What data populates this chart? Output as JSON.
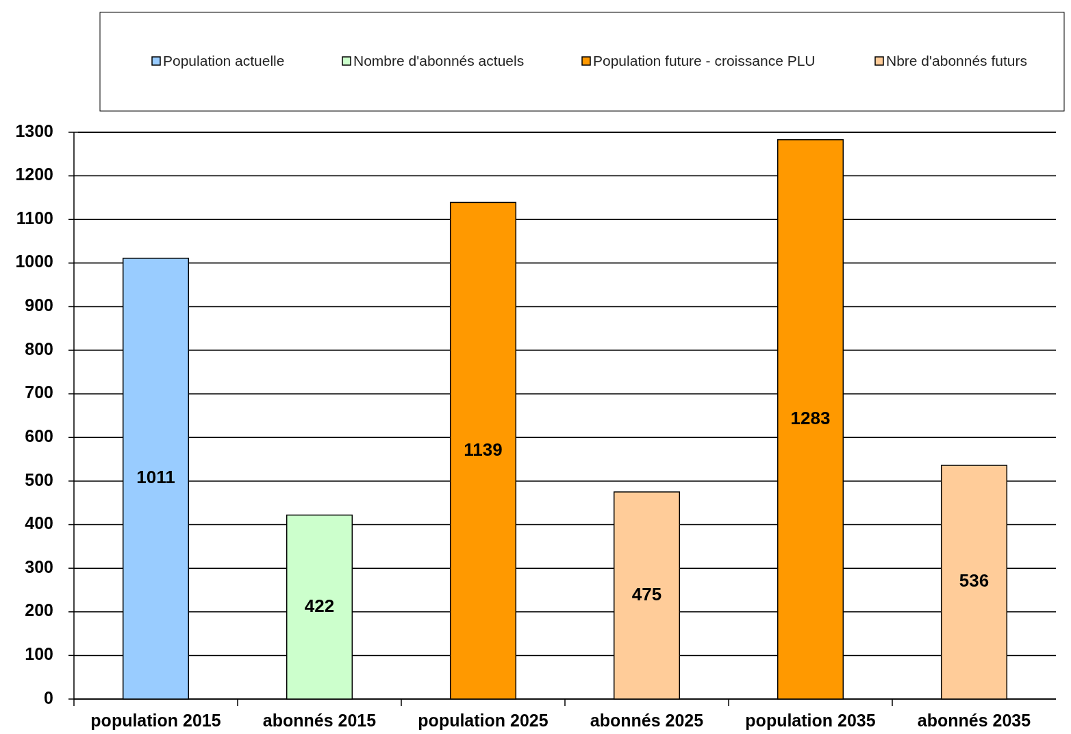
{
  "chart_data": {
    "type": "bar",
    "categories": [
      "population 2015",
      "abonnés 2015",
      "population 2025",
      "abonnés 2025",
      "population 2035",
      "abonnés 2035"
    ],
    "series": [
      {
        "name": "Population actuelle",
        "color": "#99ccff",
        "values": [
          1011,
          null,
          null,
          null,
          null,
          null
        ]
      },
      {
        "name": "Nombre d'abonnés actuels",
        "color": "#ccffcc",
        "values": [
          null,
          422,
          null,
          null,
          null,
          null
        ]
      },
      {
        "name": "Population future - croissance PLU",
        "color": "#ff9900",
        "values": [
          null,
          null,
          1139,
          null,
          1283,
          null
        ]
      },
      {
        "name": "Nbre d'abonnés futurs",
        "color": "#ffcc99",
        "values": [
          null,
          null,
          null,
          475,
          null,
          536
        ]
      }
    ],
    "ylim": [
      0,
      1300
    ],
    "yticks": [
      0,
      100,
      200,
      300,
      400,
      500,
      600,
      700,
      800,
      900,
      1000,
      1100,
      1200,
      1300
    ],
    "grid": "y",
    "legend": "top",
    "data_labels": true
  }
}
